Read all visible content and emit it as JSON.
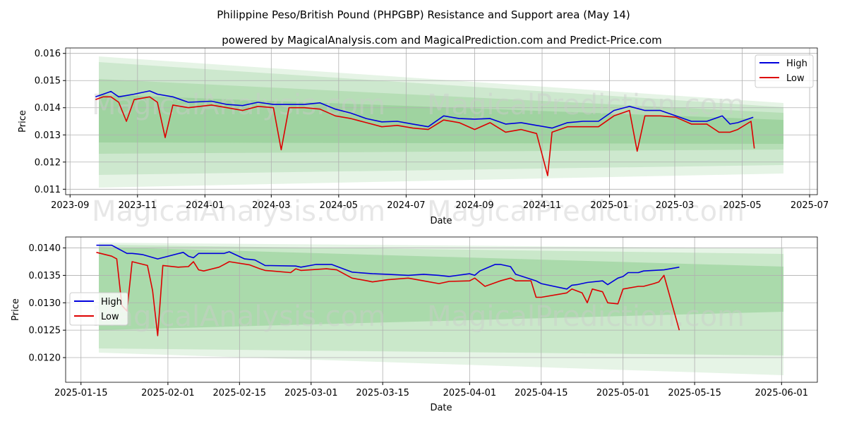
{
  "title": "Philippine Peso/British Pound (PHPGBP) Resistance and Support area (May 14)",
  "subtitle": "powered by MagicalAnalysis.com and MagicalPrediction.com and Predict-Price.com",
  "watermark_left": "MagicalAnalysis.com",
  "watermark_right": "MagicalPrediction.com",
  "colors": {
    "high": "#0000dd",
    "low": "#dd0000",
    "band": "#4caf50",
    "grid": "#b0b0b0"
  },
  "chart_data": [
    {
      "type": "line",
      "xlabel": "Date",
      "ylabel": "Price",
      "legend": "top-right",
      "grid": true,
      "xlim": [
        "2023-08-28",
        "2025-07-08"
      ],
      "ylim": [
        0.0108,
        0.0162
      ],
      "x_ticks": [
        "2023-09",
        "2023-11",
        "2024-01",
        "2024-03",
        "2024-05",
        "2024-07",
        "2024-09",
        "2024-11",
        "2025-01",
        "2025-03",
        "2025-05",
        "2025-07"
      ],
      "y_ticks": [
        "0.011",
        "0.012",
        "0.013",
        "0.014",
        "0.015",
        "0.016"
      ],
      "series": [
        {
          "name": "High",
          "x": [
            "2023-09-24",
            "2023-10-01",
            "2023-10-08",
            "2023-10-15",
            "2023-10-29",
            "2023-11-12",
            "2023-11-19",
            "2023-12-03",
            "2023-12-17",
            "2024-01-07",
            "2024-01-21",
            "2024-02-04",
            "2024-02-18",
            "2024-03-03",
            "2024-03-17",
            "2024-03-31",
            "2024-04-14",
            "2024-04-28",
            "2024-05-12",
            "2024-05-26",
            "2024-06-09",
            "2024-06-23",
            "2024-07-07",
            "2024-07-21",
            "2024-08-04",
            "2024-08-18",
            "2024-09-01",
            "2024-09-15",
            "2024-09-29",
            "2024-10-13",
            "2024-10-27",
            "2024-11-10",
            "2024-11-24",
            "2024-12-08",
            "2024-12-22",
            "2025-01-05",
            "2025-01-19",
            "2025-02-02",
            "2025-02-16",
            "2025-03-02",
            "2025-03-16",
            "2025-03-30",
            "2025-04-13",
            "2025-04-20",
            "2025-04-27",
            "2025-05-11"
          ],
          "values": [
            0.0144,
            0.0145,
            0.0146,
            0.0144,
            0.0145,
            0.01462,
            0.0145,
            0.0144,
            0.0142,
            0.01424,
            0.01412,
            0.01408,
            0.0142,
            0.01412,
            0.01412,
            0.01412,
            0.01418,
            0.01395,
            0.0138,
            0.0136,
            0.01348,
            0.0135,
            0.0134,
            0.0133,
            0.0137,
            0.0136,
            0.01358,
            0.0136,
            0.0134,
            0.01345,
            0.01335,
            0.01325,
            0.01345,
            0.0135,
            0.0135,
            0.0139,
            0.01405,
            0.0139,
            0.0139,
            0.0137,
            0.0135,
            0.0135,
            0.0137,
            0.0134,
            0.01345,
            0.01365
          ]
        },
        {
          "name": "Low",
          "x": [
            "2023-09-24",
            "2023-10-01",
            "2023-10-08",
            "2023-10-15",
            "2023-10-22",
            "2023-10-29",
            "2023-11-12",
            "2023-11-19",
            "2023-11-26",
            "2023-12-03",
            "2023-12-17",
            "2024-01-07",
            "2024-01-21",
            "2024-02-04",
            "2024-02-18",
            "2024-03-03",
            "2024-03-10",
            "2024-03-17",
            "2024-03-31",
            "2024-04-14",
            "2024-04-28",
            "2024-05-12",
            "2024-05-26",
            "2024-06-09",
            "2024-06-23",
            "2024-07-07",
            "2024-07-21",
            "2024-08-04",
            "2024-08-18",
            "2024-09-01",
            "2024-09-15",
            "2024-09-29",
            "2024-10-13",
            "2024-10-27",
            "2024-11-06",
            "2024-11-10",
            "2024-11-24",
            "2024-12-08",
            "2024-12-22",
            "2025-01-05",
            "2025-01-19",
            "2025-01-26",
            "2025-02-02",
            "2025-02-16",
            "2025-03-02",
            "2025-03-16",
            "2025-03-30",
            "2025-04-10",
            "2025-04-20",
            "2025-04-27",
            "2025-05-09",
            "2025-05-12"
          ],
          "values": [
            0.0143,
            0.0144,
            0.0144,
            0.0142,
            0.0135,
            0.0143,
            0.0144,
            0.0142,
            0.0129,
            0.0141,
            0.014,
            0.0141,
            0.014,
            0.0139,
            0.01405,
            0.014,
            0.01245,
            0.014,
            0.014,
            0.01395,
            0.0137,
            0.0136,
            0.01345,
            0.0133,
            0.01335,
            0.01325,
            0.0132,
            0.01355,
            0.01345,
            0.0132,
            0.01345,
            0.0131,
            0.0132,
            0.01305,
            0.0115,
            0.0131,
            0.0133,
            0.0133,
            0.0133,
            0.0137,
            0.0139,
            0.0124,
            0.0137,
            0.0137,
            0.01365,
            0.0134,
            0.0134,
            0.0131,
            0.0131,
            0.0132,
            0.0135,
            0.0125
          ]
        }
      ]
    },
    {
      "type": "line",
      "xlabel": "Date",
      "ylabel": "Price",
      "legend": "middle-left",
      "grid": true,
      "xlim": [
        "2025-01-12",
        "2025-06-08"
      ],
      "ylim": [
        0.01155,
        0.0142
      ],
      "x_ticks": [
        "2025-01-15",
        "2025-02-01",
        "2025-02-15",
        "2025-03-01",
        "2025-03-15",
        "2025-04-01",
        "2025-04-15",
        "2025-05-01",
        "2025-05-15",
        "2025-06-01"
      ],
      "y_ticks": [
        "0.0120",
        "0.0125",
        "0.0130",
        "0.0135",
        "0.0140"
      ],
      "series": [
        {
          "name": "High",
          "x": [
            "2025-01-18",
            "2025-01-21",
            "2025-01-22",
            "2025-01-23",
            "2025-01-24",
            "2025-01-25",
            "2025-01-26",
            "2025-01-27",
            "2025-01-30",
            "2025-02-04",
            "2025-02-05",
            "2025-02-06",
            "2025-02-07",
            "2025-02-12",
            "2025-02-13",
            "2025-02-16",
            "2025-02-18",
            "2025-02-20",
            "2025-02-26",
            "2025-02-27",
            "2025-03-02",
            "2025-03-05",
            "2025-03-09",
            "2025-03-13",
            "2025-03-16",
            "2025-03-20",
            "2025-03-23",
            "2025-03-26",
            "2025-03-28",
            "2025-04-01",
            "2025-04-02",
            "2025-04-03",
            "2025-04-06",
            "2025-04-07",
            "2025-04-09",
            "2025-04-10",
            "2025-04-14",
            "2025-04-15",
            "2025-04-20",
            "2025-04-21",
            "2025-04-22",
            "2025-04-24",
            "2025-04-27",
            "2025-04-28",
            "2025-04-30",
            "2025-05-01",
            "2025-05-02",
            "2025-05-04",
            "2025-05-05",
            "2025-05-09",
            "2025-05-12"
          ],
          "values": [
            0.01405,
            0.01405,
            0.014,
            0.01395,
            0.0139,
            0.0139,
            0.01389,
            0.01388,
            0.0138,
            0.01392,
            0.01385,
            0.01382,
            0.0139,
            0.0139,
            0.01393,
            0.0138,
            0.01378,
            0.01368,
            0.01367,
            0.01365,
            0.0137,
            0.0137,
            0.01356,
            0.01353,
            0.01352,
            0.0135,
            0.01352,
            0.0135,
            0.01348,
            0.01353,
            0.0135,
            0.01358,
            0.0137,
            0.0137,
            0.01366,
            0.01352,
            0.0134,
            0.01335,
            0.01325,
            0.01332,
            0.01333,
            0.01337,
            0.0134,
            0.01333,
            0.01345,
            0.01348,
            0.01355,
            0.01355,
            0.01358,
            0.0136,
            0.01365
          ]
        },
        {
          "name": "Low",
          "x": [
            "2025-01-18",
            "2025-01-21",
            "2025-01-22",
            "2025-01-23",
            "2025-01-24",
            "2025-01-25",
            "2025-01-28",
            "2025-01-29",
            "2025-01-30",
            "2025-01-31",
            "2025-02-03",
            "2025-02-05",
            "2025-02-06",
            "2025-02-07",
            "2025-02-08",
            "2025-02-11",
            "2025-02-12",
            "2025-02-13",
            "2025-02-17",
            "2025-02-19",
            "2025-02-20",
            "2025-02-25",
            "2025-02-26",
            "2025-02-27",
            "2025-03-04",
            "2025-03-06",
            "2025-03-09",
            "2025-03-12",
            "2025-03-13",
            "2025-03-16",
            "2025-03-20",
            "2025-03-23",
            "2025-03-26",
            "2025-03-28",
            "2025-04-01",
            "2025-04-02",
            "2025-04-04",
            "2025-04-07",
            "2025-04-09",
            "2025-04-10",
            "2025-04-13",
            "2025-04-14",
            "2025-04-15",
            "2025-04-20",
            "2025-04-21",
            "2025-04-23",
            "2025-04-24",
            "2025-04-25",
            "2025-04-27",
            "2025-04-28",
            "2025-04-30",
            "2025-05-01",
            "2025-05-04",
            "2025-05-05",
            "2025-05-07",
            "2025-05-08",
            "2025-05-09",
            "2025-05-12"
          ],
          "values": [
            0.01392,
            0.01385,
            0.0138,
            0.01295,
            0.01285,
            0.01375,
            0.01368,
            0.01322,
            0.0124,
            0.01368,
            0.01365,
            0.01366,
            0.01375,
            0.0136,
            0.01358,
            0.01365,
            0.0137,
            0.01375,
            0.01369,
            0.01362,
            0.01359,
            0.01355,
            0.01362,
            0.01359,
            0.01362,
            0.0136,
            0.01345,
            0.0134,
            0.01338,
            0.01342,
            0.01345,
            0.0134,
            0.01335,
            0.01339,
            0.0134,
            0.01345,
            0.0133,
            0.0134,
            0.01345,
            0.0134,
            0.0134,
            0.0131,
            0.0131,
            0.01318,
            0.01325,
            0.01318,
            0.013,
            0.01325,
            0.0132,
            0.013,
            0.01298,
            0.01325,
            0.0133,
            0.0133,
            0.01335,
            0.01338,
            0.0135,
            0.0125
          ]
        }
      ]
    }
  ]
}
